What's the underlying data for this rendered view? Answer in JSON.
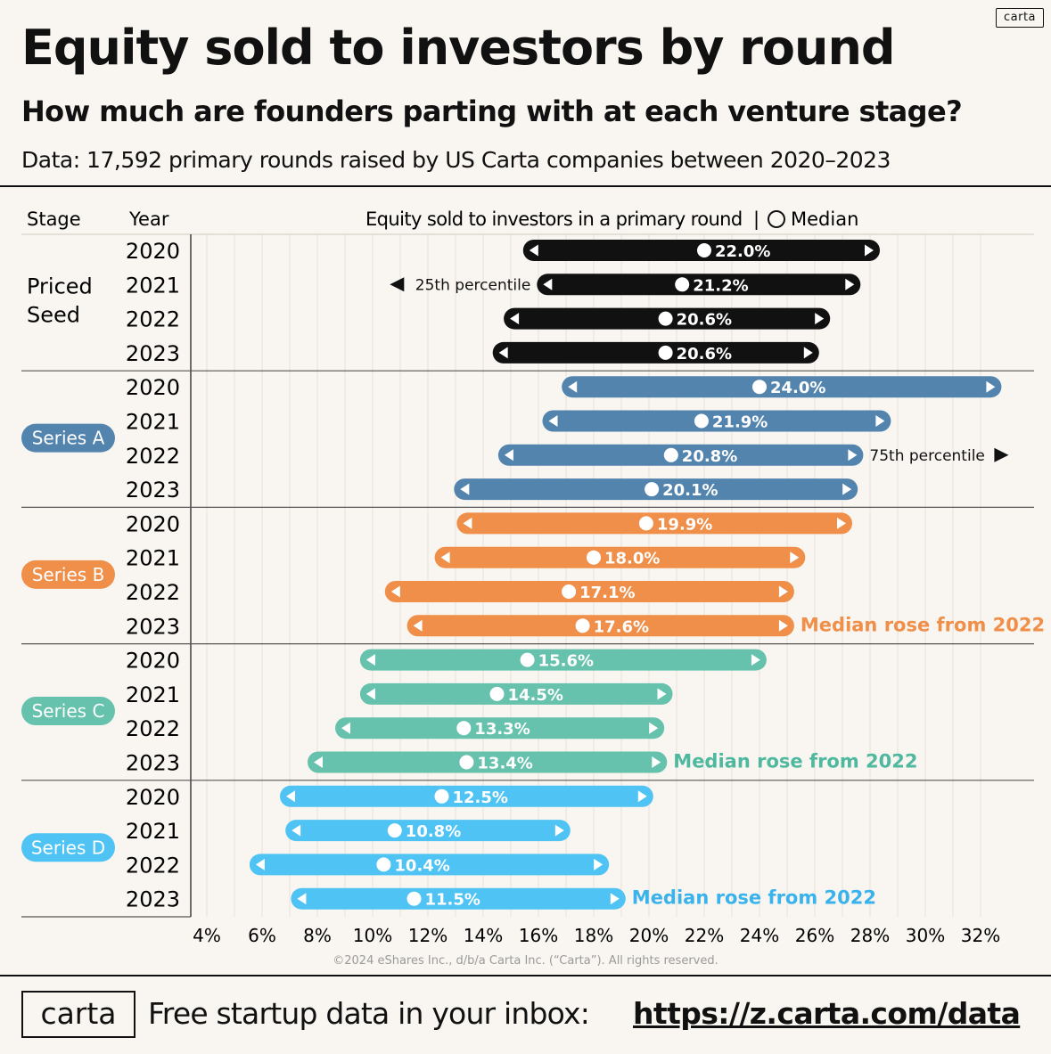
{
  "brand": {
    "tag": "carta"
  },
  "header": {
    "title": "Equity sold to investors by round",
    "subtitle": "How much are founders parting with at each venture stage?",
    "data_note": "Data: 17,592 primary rounds raised by US Carta companies between 2020–2023"
  },
  "chart_data": {
    "type": "range-dot",
    "columns": {
      "stage": "Stage",
      "year": "Year",
      "value": "Equity sold to investors in a primary round"
    },
    "legend": {
      "separator": "|",
      "median": "Median"
    },
    "x_ticks": [
      "4%",
      "6%",
      "8%",
      "10%",
      "12%",
      "14%",
      "16%",
      "18%",
      "20%",
      "22%",
      "24%",
      "26%",
      "28%",
      "30%",
      "32%"
    ],
    "xlim": [
      4,
      32
    ],
    "grid": true,
    "stages": [
      {
        "name": "Priced Seed",
        "name_lines": [
          "Priced",
          "Seed"
        ],
        "color": "#111111",
        "pill": false,
        "rows": [
          {
            "year": "2020",
            "p25": 15.8,
            "median": 22.0,
            "p75": 28.0,
            "label": "22.0%"
          },
          {
            "year": "2021",
            "p25": 16.3,
            "median": 21.2,
            "p75": 27.3,
            "label": "21.2%"
          },
          {
            "year": "2022",
            "p25": 15.1,
            "median": 20.6,
            "p75": 26.2,
            "label": "20.6%"
          },
          {
            "year": "2023",
            "p25": 14.7,
            "median": 20.6,
            "p75": 25.8,
            "label": "20.6%"
          }
        ]
      },
      {
        "name": "Series A",
        "color": "#5384ae",
        "pill": true,
        "rows": [
          {
            "year": "2020",
            "p25": 17.2,
            "median": 24.0,
            "p75": 32.4,
            "label": "24.0%"
          },
          {
            "year": "2021",
            "p25": 16.5,
            "median": 21.9,
            "p75": 28.4,
            "label": "21.9%"
          },
          {
            "year": "2022",
            "p25": 14.9,
            "median": 20.8,
            "p75": 27.4,
            "label": "20.8%"
          },
          {
            "year": "2023",
            "p25": 13.3,
            "median": 20.1,
            "p75": 27.2,
            "label": "20.1%"
          }
        ]
      },
      {
        "name": "Series B",
        "color": "#ef8f49",
        "pill": true,
        "rows": [
          {
            "year": "2020",
            "p25": 13.4,
            "median": 19.9,
            "p75": 27.0,
            "label": "19.9%"
          },
          {
            "year": "2021",
            "p25": 12.6,
            "median": 18.0,
            "p75": 25.3,
            "label": "18.0%"
          },
          {
            "year": "2022",
            "p25": 10.8,
            "median": 17.1,
            "p75": 24.9,
            "label": "17.1%"
          },
          {
            "year": "2023",
            "p25": 11.6,
            "median": 17.6,
            "p75": 24.9,
            "label": "17.6%"
          }
        ]
      },
      {
        "name": "Series C",
        "color": "#66c2ac",
        "pill": true,
        "rows": [
          {
            "year": "2020",
            "p25": 9.9,
            "median": 15.6,
            "p75": 23.9,
            "label": "15.6%"
          },
          {
            "year": "2021",
            "p25": 9.9,
            "median": 14.5,
            "p75": 20.5,
            "label": "14.5%"
          },
          {
            "year": "2022",
            "p25": 9.0,
            "median": 13.3,
            "p75": 20.2,
            "label": "13.3%"
          },
          {
            "year": "2023",
            "p25": 8.0,
            "median": 13.4,
            "p75": 20.3,
            "label": "13.4%"
          }
        ]
      },
      {
        "name": "Series D",
        "color": "#4fc3f4",
        "pill": true,
        "rows": [
          {
            "year": "2020",
            "p25": 7.0,
            "median": 12.5,
            "p75": 19.8,
            "label": "12.5%"
          },
          {
            "year": "2021",
            "p25": 7.2,
            "median": 10.8,
            "p75": 16.8,
            "label": "10.8%"
          },
          {
            "year": "2022",
            "p25": 5.9,
            "median": 10.4,
            "p75": 18.2,
            "label": "10.4%"
          },
          {
            "year": "2023",
            "p25": 7.4,
            "median": 11.5,
            "p75": 18.8,
            "label": "11.5%"
          }
        ]
      }
    ],
    "annotations": [
      {
        "text": "25th percentile",
        "stage": 0,
        "row": 1,
        "side": "left",
        "marker": "◀",
        "color": "#111111"
      },
      {
        "text": "75th percentile",
        "stage": 1,
        "row": 2,
        "side": "right",
        "marker": "▶",
        "color": "#111111"
      },
      {
        "text": "Median rose from 2022",
        "stage": 2,
        "row": 3,
        "side": "right",
        "color": "#ef8f49"
      },
      {
        "text": "Median rose from 2022",
        "stage": 3,
        "row": 3,
        "side": "right",
        "color": "#4fb99f"
      },
      {
        "text": "Median rose from 2022",
        "stage": 4,
        "row": 3,
        "side": "right",
        "color": "#3ab3ec"
      }
    ]
  },
  "copyright": "©2024 eShares Inc., d/b/a Carta Inc. (“Carta”). All rights reserved.",
  "footer": {
    "logo": "carta",
    "text": "Free startup data in your inbox:",
    "link": "https://z.carta.com/data"
  }
}
